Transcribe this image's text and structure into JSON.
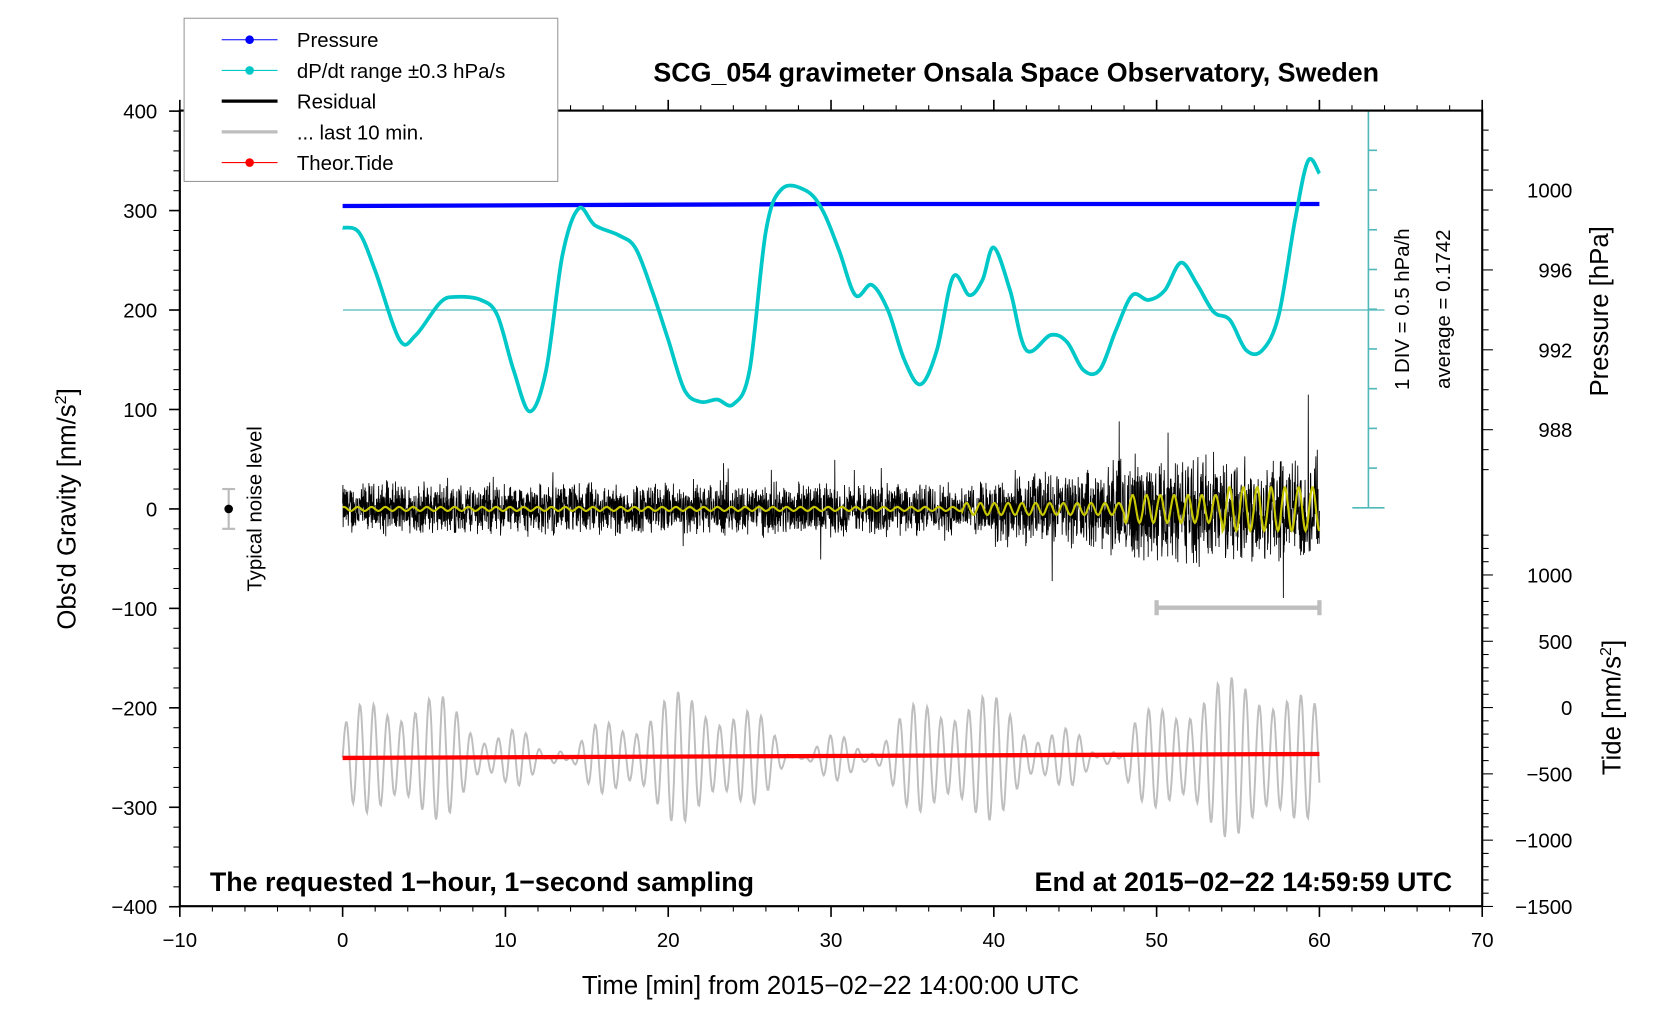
{
  "chart_data": {
    "type": "line",
    "title": "SCG_054 gravimeter Onsala Space Observatory, Sweden",
    "xlabel": "Time [min] from 2015−02−22 14:00:00 UTC",
    "ylabel_left": "Obs'd Gravity [nm/s",
    "ylabel_left_sup": "2",
    "ylabel_left_end": "]",
    "ylabel_right_pressure": "Pressure [hPa]",
    "ylabel_right_tide": "Tide [nm/s",
    "ylabel_right_tide_sup": "2",
    "ylabel_right_tide_end": "]",
    "xlim": [
      -10,
      70
    ],
    "ylim": [
      -400,
      400
    ],
    "pressure_lim_hpa": [
      986,
      1004
    ],
    "tide_lim": [
      -1500,
      1500
    ],
    "x_ticks": [
      "−10",
      "0",
      "10",
      "20",
      "30",
      "40",
      "50",
      "60",
      "70"
    ],
    "x_tick_values": [
      -10,
      0,
      10,
      20,
      30,
      40,
      50,
      60,
      70
    ],
    "y_ticks": [
      "400",
      "300",
      "200",
      "100",
      "0",
      "−100",
      "−200",
      "−300",
      "−400"
    ],
    "y_tick_values": [
      400,
      300,
      200,
      100,
      0,
      -100,
      -200,
      -300,
      -400
    ],
    "pressure_ticks": [
      "1000",
      "996",
      "992",
      "988"
    ],
    "pressure_tick_values": [
      1000,
      996,
      992,
      988
    ],
    "tide_ticks": [
      "1000",
      "500",
      "0",
      "−500",
      "−1000",
      "−1500"
    ],
    "tide_tick_values": [
      1000,
      500,
      0,
      -500,
      -1000,
      -1500
    ],
    "annotations": {
      "bottom_left": "The requested 1−hour, 1−second sampling",
      "bottom_right": "End at 2015−02−22 14:59:59 UTC",
      "noise": "Typical noise level",
      "div": "1 DIV = 0.5 hPa/h",
      "average": "average = 0.1742"
    },
    "legend": {
      "placement": "top-left",
      "entries": [
        {
          "label": "Pressure",
          "color": "#0000ff",
          "marker": true
        },
        {
          "label": "dP/dt range ±0.3 hPa/s",
          "color": "#00c8c8",
          "marker": true
        },
        {
          "label": "Residual",
          "color": "#000000",
          "marker": false
        },
        {
          "label": "... last 10 min.",
          "color": "#bebebe",
          "marker": false
        },
        {
          "label": "Theor.Tide",
          "color": "#ff0000",
          "marker": true
        }
      ]
    },
    "series": {
      "pressure_hpa": {
        "x": [
          0,
          15,
          30,
          45,
          60
        ],
        "y": [
          999.2,
          999.25,
          999.3,
          999.3,
          999.3
        ],
        "color": "#0000ff"
      },
      "dpdt_hpa_per_h": {
        "color": "#00c8c8",
        "average": 0.1742,
        "div": 0.5,
        "x": [
          0,
          1,
          2,
          3.5,
          4.5,
          6,
          7,
          8.5,
          9.5,
          10.5,
          11.5,
          12.5,
          13.5,
          14.5,
          15.5,
          17,
          18,
          19,
          20,
          21,
          22,
          23,
          24,
          25,
          26,
          27,
          28.5,
          29.5,
          30.5,
          31.5,
          32.5,
          33.5,
          34.5,
          35.5,
          36.5,
          37.5,
          38.5,
          39.3,
          40,
          41,
          42,
          43.5,
          44.5,
          45.5,
          46.5,
          47.5,
          48.5,
          49.5,
          50.5,
          51.5,
          52.5,
          53.5,
          54.5,
          55.5,
          56.5,
          57.5,
          58.5,
          59.3,
          60
        ],
        "y": [
          1.21,
          1.15,
          0.67,
          -0.2,
          -0.14,
          0.27,
          0.34,
          0.3,
          0.11,
          -0.58,
          -1.1,
          -0.58,
          0.86,
          1.45,
          1.24,
          1.11,
          0.95,
          0.42,
          -0.2,
          -0.83,
          -0.98,
          -0.95,
          -1.01,
          -0.58,
          1.17,
          1.7,
          1.67,
          1.42,
          0.92,
          0.36,
          0.49,
          0.17,
          -0.45,
          -0.76,
          -0.33,
          0.59,
          0.36,
          0.55,
          0.96,
          0.42,
          -0.33,
          -0.14,
          -0.23,
          -0.58,
          -0.58,
          -0.08,
          0.36,
          0.3,
          0.42,
          0.77,
          0.49,
          0.15,
          0.05,
          -0.33,
          -0.33,
          0.11,
          1.3,
          2.05,
          1.89
        ]
      },
      "residual": {
        "color": "#000000",
        "x_range": [
          0,
          60
        ]
      },
      "residual_smoothed_color": "#c8c800",
      "last_10_min": {
        "color": "#bebebe",
        "x_range": [
          50,
          60
        ]
      },
      "theor_tide": {
        "x": [
          0,
          60
        ],
        "y": [
          -380,
          -350
        ],
        "color": "#ff0000"
      },
      "noise_level": {
        "x": -7,
        "y": 0,
        "range": [
          -20,
          20
        ]
      }
    }
  }
}
